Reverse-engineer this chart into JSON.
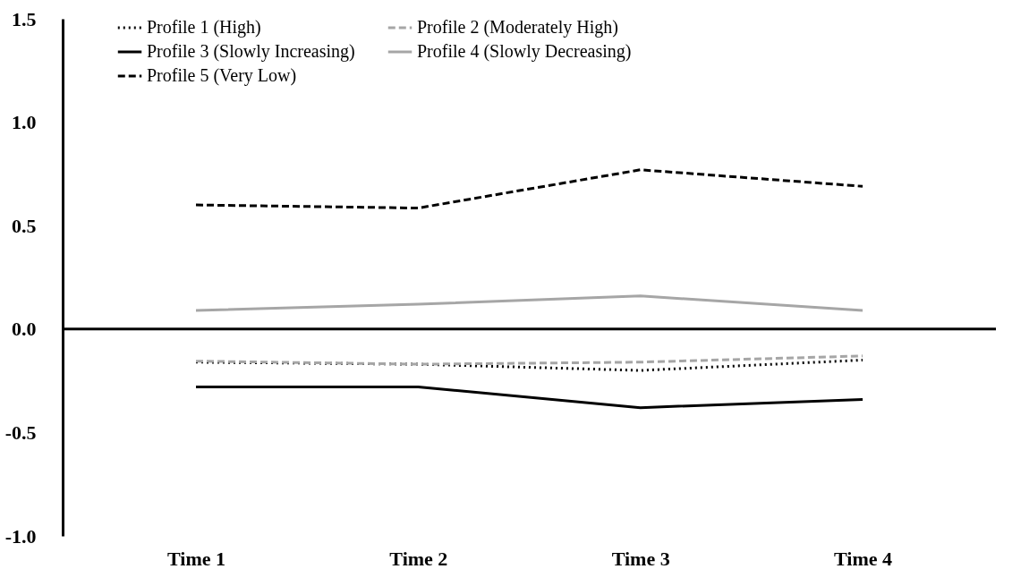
{
  "chart_data": {
    "type": "line",
    "categories": [
      "Time 1",
      "Time 2",
      "Time 3",
      "Time 4"
    ],
    "series": [
      {
        "name": "Profile 1 (High)",
        "color": "#000000",
        "line_style": "dotted",
        "values": [
          -0.16,
          -0.17,
          -0.2,
          -0.15
        ]
      },
      {
        "name": "Profile 2 (Moderately High)",
        "color": "#a6a6a6",
        "line_style": "dashed",
        "values": [
          -0.155,
          -0.17,
          -0.16,
          -0.13
        ]
      },
      {
        "name": "Profile 3 (Slowly Increasing)",
        "color": "#000000",
        "line_style": "solid",
        "values": [
          -0.28,
          -0.28,
          -0.38,
          -0.34
        ]
      },
      {
        "name": "Profile 4 (Slowly Decreasing)",
        "color": "#a6a6a6",
        "line_style": "solid",
        "values": [
          0.09,
          0.12,
          0.16,
          0.09
        ]
      },
      {
        "name": "Profile 5 (Very Low)",
        "color": "#000000",
        "line_style": "dashed",
        "values": [
          0.6,
          0.585,
          0.77,
          0.69
        ]
      }
    ],
    "ylim": [
      -1.0,
      1.5
    ],
    "yticks": [
      {
        "value": -1.0,
        "label": "-1.0"
      },
      {
        "value": -0.5,
        "label": "-0.5"
      },
      {
        "value": 0,
        "label": "0.0"
      },
      {
        "value": 0.5,
        "label": "0.5"
      },
      {
        "value": 1.0,
        "label": "1.0"
      },
      {
        "value": 1.5,
        "label": "1.5"
      }
    ],
    "ref_lines": [
      {
        "axis": "y",
        "value": 0,
        "color": "#000000"
      }
    ],
    "grid": false,
    "legend": "top",
    "marker": "none"
  }
}
